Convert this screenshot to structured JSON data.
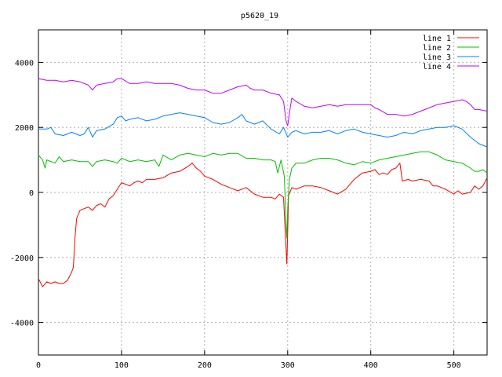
{
  "chart_data": {
    "type": "line",
    "title": "p5620_19",
    "xlabel": "",
    "ylabel": "",
    "xlim": [
      0,
      540
    ],
    "ylim": [
      -5000,
      5000
    ],
    "xticks": [
      0,
      100,
      200,
      300,
      400,
      500
    ],
    "yticks": [
      -4000,
      -2000,
      0,
      2000,
      4000
    ],
    "grid": true,
    "legend_position": "top-right",
    "series": [
      {
        "name": "line 1",
        "color": "#ff0000",
        "points": [
          [
            0,
            -2650
          ],
          [
            5,
            -2900
          ],
          [
            10,
            -2750
          ],
          [
            15,
            -2800
          ],
          [
            20,
            -2750
          ],
          [
            25,
            -2800
          ],
          [
            30,
            -2800
          ],
          [
            35,
            -2700
          ],
          [
            40,
            -2450
          ],
          [
            42,
            -2300
          ],
          [
            44,
            -1400
          ],
          [
            46,
            -800
          ],
          [
            50,
            -550
          ],
          [
            55,
            -500
          ],
          [
            60,
            -450
          ],
          [
            65,
            -550
          ],
          [
            70,
            -400
          ],
          [
            75,
            -350
          ],
          [
            80,
            -450
          ],
          [
            85,
            -200
          ],
          [
            90,
            -100
          ],
          [
            95,
            100
          ],
          [
            100,
            300
          ],
          [
            105,
            250
          ],
          [
            110,
            200
          ],
          [
            115,
            300
          ],
          [
            120,
            350
          ],
          [
            125,
            300
          ],
          [
            130,
            400
          ],
          [
            140,
            400
          ],
          [
            150,
            450
          ],
          [
            160,
            600
          ],
          [
            170,
            650
          ],
          [
            180,
            800
          ],
          [
            185,
            900
          ],
          [
            190,
            750
          ],
          [
            195,
            650
          ],
          [
            200,
            500
          ],
          [
            210,
            400
          ],
          [
            220,
            250
          ],
          [
            230,
            150
          ],
          [
            240,
            50
          ],
          [
            250,
            150
          ],
          [
            260,
            -50
          ],
          [
            270,
            -150
          ],
          [
            280,
            -150
          ],
          [
            285,
            -200
          ],
          [
            290,
            -50
          ],
          [
            295,
            -150
          ],
          [
            297,
            -1200
          ],
          [
            299,
            -2200
          ],
          [
            300,
            -1200
          ],
          [
            301,
            -100
          ],
          [
            305,
            150
          ],
          [
            310,
            100
          ],
          [
            320,
            200
          ],
          [
            330,
            200
          ],
          [
            340,
            150
          ],
          [
            350,
            50
          ],
          [
            360,
            -50
          ],
          [
            370,
            100
          ],
          [
            380,
            400
          ],
          [
            390,
            600
          ],
          [
            400,
            650
          ],
          [
            405,
            700
          ],
          [
            410,
            550
          ],
          [
            415,
            600
          ],
          [
            420,
            550
          ],
          [
            425,
            700
          ],
          [
            430,
            750
          ],
          [
            435,
            900
          ],
          [
            438,
            350
          ],
          [
            445,
            400
          ],
          [
            450,
            350
          ],
          [
            460,
            400
          ],
          [
            470,
            350
          ],
          [
            475,
            200
          ],
          [
            480,
            200
          ],
          [
            490,
            100
          ],
          [
            500,
            -50
          ],
          [
            505,
            50
          ],
          [
            510,
            -50
          ],
          [
            520,
            0
          ],
          [
            525,
            200
          ],
          [
            530,
            100
          ],
          [
            535,
            200
          ],
          [
            540,
            450
          ]
        ]
      },
      {
        "name": "line 2",
        "color": "#00c000",
        "points": [
          [
            0,
            1150
          ],
          [
            5,
            1000
          ],
          [
            8,
            750
          ],
          [
            10,
            1000
          ],
          [
            20,
            900
          ],
          [
            25,
            1100
          ],
          [
            30,
            950
          ],
          [
            40,
            1000
          ],
          [
            50,
            950
          ],
          [
            60,
            950
          ],
          [
            65,
            800
          ],
          [
            70,
            950
          ],
          [
            80,
            1000
          ],
          [
            90,
            950
          ],
          [
            95,
            900
          ],
          [
            100,
            1050
          ],
          [
            110,
            950
          ],
          [
            120,
            1000
          ],
          [
            130,
            950
          ],
          [
            140,
            1000
          ],
          [
            145,
            800
          ],
          [
            150,
            1150
          ],
          [
            160,
            1000
          ],
          [
            170,
            1150
          ],
          [
            180,
            1200
          ],
          [
            190,
            1150
          ],
          [
            200,
            1100
          ],
          [
            210,
            1200
          ],
          [
            220,
            1150
          ],
          [
            230,
            1200
          ],
          [
            240,
            1200
          ],
          [
            250,
            1050
          ],
          [
            260,
            1050
          ],
          [
            270,
            1000
          ],
          [
            280,
            1000
          ],
          [
            285,
            950
          ],
          [
            288,
            600
          ],
          [
            292,
            1000
          ],
          [
            296,
            500
          ],
          [
            298,
            -1000
          ],
          [
            299,
            -1400
          ],
          [
            300,
            -500
          ],
          [
            302,
            400
          ],
          [
            305,
            750
          ],
          [
            310,
            900
          ],
          [
            320,
            900
          ],
          [
            330,
            1000
          ],
          [
            340,
            1050
          ],
          [
            350,
            1050
          ],
          [
            360,
            1000
          ],
          [
            370,
            900
          ],
          [
            380,
            850
          ],
          [
            390,
            950
          ],
          [
            400,
            900
          ],
          [
            410,
            1000
          ],
          [
            420,
            1050
          ],
          [
            430,
            1100
          ],
          [
            440,
            1150
          ],
          [
            450,
            1200
          ],
          [
            460,
            1250
          ],
          [
            470,
            1250
          ],
          [
            480,
            1150
          ],
          [
            490,
            1000
          ],
          [
            500,
            950
          ],
          [
            510,
            900
          ],
          [
            520,
            750
          ],
          [
            525,
            650
          ],
          [
            530,
            650
          ],
          [
            535,
            700
          ],
          [
            540,
            600
          ]
        ]
      },
      {
        "name": "line 3",
        "color": "#0080ff",
        "points": [
          [
            0,
            1950
          ],
          [
            10,
            1950
          ],
          [
            15,
            2000
          ],
          [
            20,
            1800
          ],
          [
            30,
            1750
          ],
          [
            40,
            1850
          ],
          [
            50,
            1750
          ],
          [
            55,
            1800
          ],
          [
            60,
            2000
          ],
          [
            65,
            1700
          ],
          [
            70,
            1900
          ],
          [
            80,
            1950
          ],
          [
            90,
            2100
          ],
          [
            95,
            2300
          ],
          [
            100,
            2350
          ],
          [
            105,
            2200
          ],
          [
            110,
            2250
          ],
          [
            120,
            2300
          ],
          [
            130,
            2200
          ],
          [
            140,
            2250
          ],
          [
            150,
            2350
          ],
          [
            160,
            2400
          ],
          [
            170,
            2450
          ],
          [
            180,
            2400
          ],
          [
            190,
            2350
          ],
          [
            200,
            2300
          ],
          [
            210,
            2150
          ],
          [
            220,
            2100
          ],
          [
            230,
            2150
          ],
          [
            240,
            2300
          ],
          [
            245,
            2400
          ],
          [
            250,
            2200
          ],
          [
            260,
            2100
          ],
          [
            270,
            2200
          ],
          [
            280,
            1950
          ],
          [
            290,
            1800
          ],
          [
            295,
            2000
          ],
          [
            300,
            1700
          ],
          [
            305,
            1850
          ],
          [
            310,
            1900
          ],
          [
            320,
            1800
          ],
          [
            330,
            1850
          ],
          [
            340,
            1850
          ],
          [
            350,
            1900
          ],
          [
            360,
            1800
          ],
          [
            370,
            1900
          ],
          [
            380,
            1950
          ],
          [
            390,
            1850
          ],
          [
            400,
            1800
          ],
          [
            410,
            1750
          ],
          [
            420,
            1700
          ],
          [
            430,
            1750
          ],
          [
            440,
            1850
          ],
          [
            450,
            1800
          ],
          [
            460,
            1900
          ],
          [
            470,
            1950
          ],
          [
            480,
            2000
          ],
          [
            490,
            2000
          ],
          [
            500,
            2050
          ],
          [
            510,
            1950
          ],
          [
            520,
            1700
          ],
          [
            530,
            1500
          ],
          [
            535,
            1450
          ],
          [
            540,
            1400
          ]
        ]
      },
      {
        "name": "line 4",
        "color": "#c000ff",
        "points": [
          [
            0,
            3500
          ],
          [
            10,
            3450
          ],
          [
            20,
            3450
          ],
          [
            30,
            3400
          ],
          [
            40,
            3450
          ],
          [
            50,
            3400
          ],
          [
            60,
            3300
          ],
          [
            65,
            3150
          ],
          [
            70,
            3300
          ],
          [
            80,
            3350
          ],
          [
            90,
            3400
          ],
          [
            95,
            3500
          ],
          [
            100,
            3500
          ],
          [
            110,
            3350
          ],
          [
            120,
            3350
          ],
          [
            130,
            3400
          ],
          [
            140,
            3350
          ],
          [
            150,
            3350
          ],
          [
            160,
            3350
          ],
          [
            170,
            3300
          ],
          [
            180,
            3200
          ],
          [
            190,
            3150
          ],
          [
            200,
            3150
          ],
          [
            210,
            3050
          ],
          [
            220,
            3050
          ],
          [
            230,
            3150
          ],
          [
            240,
            3250
          ],
          [
            250,
            3300
          ],
          [
            255,
            3200
          ],
          [
            260,
            3150
          ],
          [
            270,
            3150
          ],
          [
            280,
            3050
          ],
          [
            290,
            3000
          ],
          [
            295,
            2800
          ],
          [
            298,
            2200
          ],
          [
            300,
            2050
          ],
          [
            303,
            2600
          ],
          [
            305,
            2900
          ],
          [
            310,
            2800
          ],
          [
            320,
            2650
          ],
          [
            330,
            2600
          ],
          [
            340,
            2650
          ],
          [
            350,
            2700
          ],
          [
            360,
            2650
          ],
          [
            370,
            2700
          ],
          [
            380,
            2700
          ],
          [
            390,
            2700
          ],
          [
            400,
            2700
          ],
          [
            405,
            2600
          ],
          [
            410,
            2550
          ],
          [
            420,
            2400
          ],
          [
            430,
            2400
          ],
          [
            440,
            2350
          ],
          [
            450,
            2400
          ],
          [
            460,
            2500
          ],
          [
            470,
            2600
          ],
          [
            480,
            2700
          ],
          [
            490,
            2750
          ],
          [
            500,
            2800
          ],
          [
            510,
            2850
          ],
          [
            515,
            2800
          ],
          [
            520,
            2700
          ],
          [
            525,
            2550
          ],
          [
            530,
            2550
          ],
          [
            540,
            2500
          ]
        ]
      }
    ]
  }
}
